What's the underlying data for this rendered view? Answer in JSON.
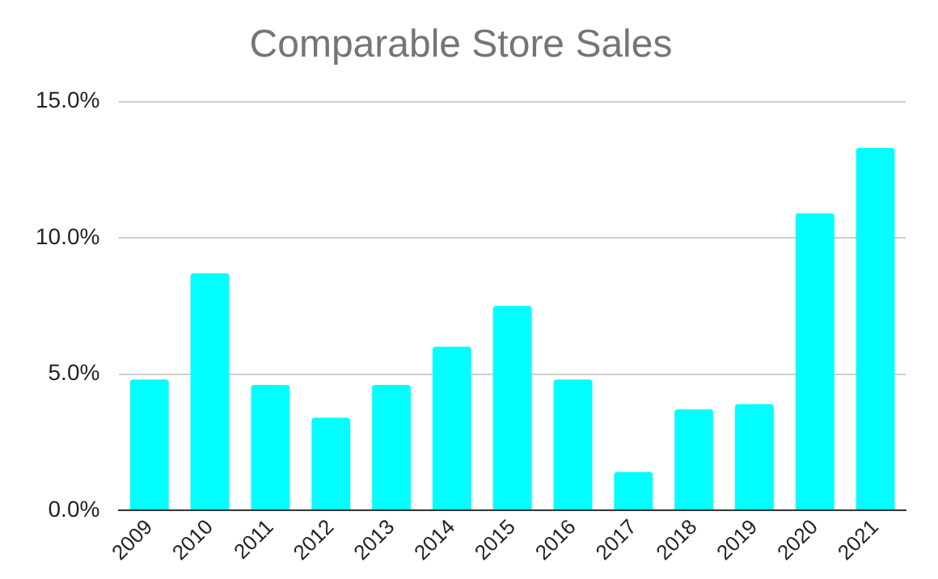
{
  "chart_data": {
    "type": "bar",
    "title": "Comparable Store Sales",
    "categories": [
      "2009",
      "2010",
      "2011",
      "2012",
      "2013",
      "2014",
      "2015",
      "2016",
      "2017",
      "2018",
      "2019",
      "2020",
      "2021"
    ],
    "values": [
      4.8,
      8.7,
      4.6,
      3.4,
      4.6,
      6.0,
      7.5,
      4.8,
      1.4,
      3.7,
      3.9,
      10.9,
      13.3
    ],
    "color": "#00ffff",
    "ylim": [
      0,
      15
    ],
    "yticks": [
      {
        "value": 0,
        "label": "0.0%"
      },
      {
        "value": 5,
        "label": "5.0%"
      },
      {
        "value": 10,
        "label": "10.0%"
      },
      {
        "value": 15,
        "label": "15.0%"
      }
    ],
    "grid": "y"
  }
}
